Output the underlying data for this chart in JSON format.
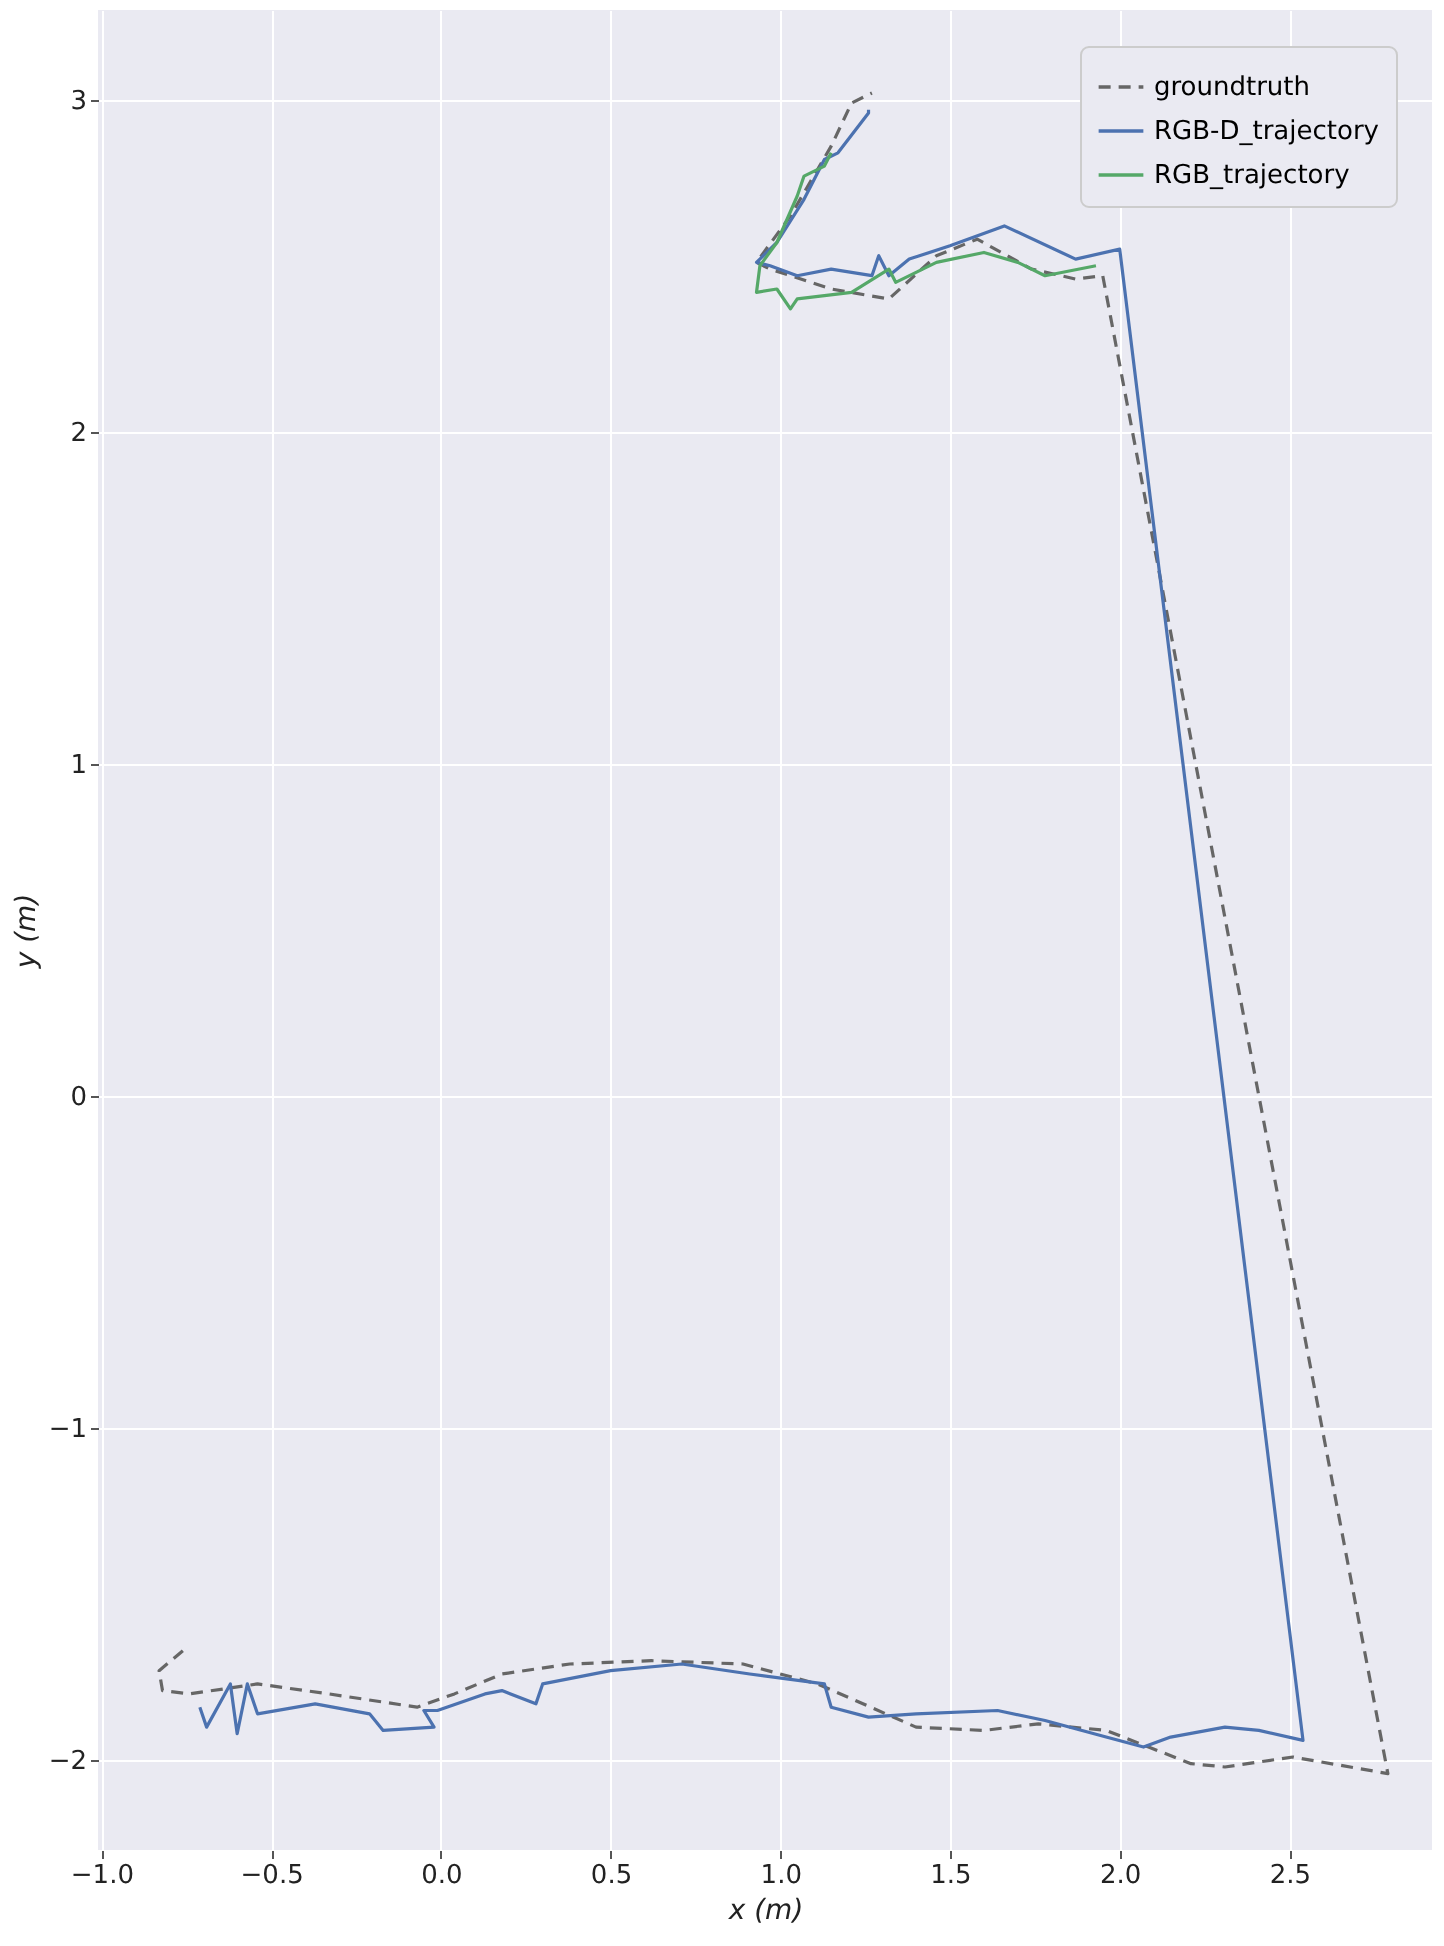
{
  "chart_data": {
    "type": "line",
    "xlabel": "x (m)",
    "ylabel": "y (m)",
    "xlim": [
      -1.01,
      2.92
    ],
    "ylim": [
      -2.27,
      3.27
    ],
    "xticks": [
      {
        "value": -1.0,
        "label": "−1.0"
      },
      {
        "value": -0.5,
        "label": "−0.5"
      },
      {
        "value": 0.0,
        "label": "0.0"
      },
      {
        "value": 0.5,
        "label": "0.5"
      },
      {
        "value": 1.0,
        "label": "1.0"
      },
      {
        "value": 1.5,
        "label": "1.5"
      },
      {
        "value": 2.0,
        "label": "2.0"
      },
      {
        "value": 2.5,
        "label": "2.5"
      }
    ],
    "yticks": [
      {
        "value": -2,
        "label": "−2"
      },
      {
        "value": -1,
        "label": "−1"
      },
      0,
      1,
      2,
      3
    ],
    "grid": true,
    "legend": "top right",
    "marker": "none",
    "series": [
      {
        "name": "groundtruth",
        "color": "#666666",
        "line_style": "dashed",
        "x": [
          -0.76,
          -0.83,
          -0.82,
          -0.74,
          -0.54,
          -0.33,
          -0.07,
          0.04,
          0.18,
          0.38,
          0.62,
          0.89,
          1.11,
          1.4,
          1.6,
          1.76,
          1.96,
          2.21,
          2.31,
          2.51,
          2.79,
          1.95,
          1.87,
          1.74,
          1.58,
          1.46,
          1.32,
          1.15,
          0.97,
          0.93,
          1.03,
          1.15,
          1.21,
          1.27
        ],
        "values": [
          -1.67,
          -1.73,
          -1.79,
          -1.8,
          -1.77,
          -1.8,
          -1.84,
          -1.8,
          -1.74,
          -1.71,
          -1.7,
          -1.71,
          -1.77,
          -1.9,
          -1.91,
          -1.89,
          -1.91,
          -2.01,
          -2.02,
          -1.99,
          -2.04,
          2.47,
          2.46,
          2.49,
          2.58,
          2.53,
          2.4,
          2.43,
          2.49,
          2.51,
          2.65,
          2.86,
          2.99,
          3.02
        ]
      },
      {
        "name": "RGB-D_trajectory",
        "color": "#4c72b0",
        "line_style": "solid",
        "x": [
          -0.71,
          -0.69,
          -0.62,
          -0.6,
          -0.57,
          -0.54,
          -0.37,
          -0.21,
          -0.17,
          -0.02,
          -0.05,
          -0.01,
          0.13,
          0.18,
          0.28,
          0.3,
          0.5,
          0.71,
          0.91,
          1.13,
          1.15,
          1.26,
          1.4,
          1.64,
          1.78,
          1.96,
          2.07,
          2.15,
          2.31,
          2.41,
          2.54,
          2.0,
          1.87,
          1.66,
          1.5,
          1.38,
          1.32,
          1.29,
          1.27,
          1.15,
          1.05,
          0.97,
          0.93,
          0.99,
          1.07,
          1.13,
          1.17,
          1.26,
          1.26
        ],
        "values": [
          -1.84,
          -1.9,
          -1.77,
          -1.92,
          -1.77,
          -1.86,
          -1.83,
          -1.86,
          -1.91,
          -1.9,
          -1.85,
          -1.85,
          -1.8,
          -1.79,
          -1.83,
          -1.77,
          -1.73,
          -1.71,
          -1.74,
          -1.77,
          -1.84,
          -1.87,
          -1.86,
          -1.85,
          -1.88,
          -1.93,
          -1.96,
          -1.93,
          -1.9,
          -1.91,
          -1.94,
          2.55,
          2.52,
          2.62,
          2.56,
          2.52,
          2.47,
          2.53,
          2.47,
          2.49,
          2.47,
          2.5,
          2.51,
          2.57,
          2.7,
          2.82,
          2.84,
          2.96,
          2.97
        ]
      },
      {
        "name": "RGB_trajectory",
        "color": "#55a868",
        "line_style": "solid",
        "x": [
          1.93,
          1.78,
          1.7,
          1.6,
          1.46,
          1.34,
          1.32,
          1.21,
          1.05,
          1.03,
          0.99,
          0.93,
          0.94,
          0.99,
          1.05,
          1.07,
          1.13,
          1.15
        ],
        "values": [
          2.5,
          2.47,
          2.51,
          2.54,
          2.51,
          2.45,
          2.49,
          2.42,
          2.4,
          2.37,
          2.43,
          2.42,
          2.5,
          2.57,
          2.71,
          2.77,
          2.8,
          2.84
        ]
      }
    ]
  }
}
